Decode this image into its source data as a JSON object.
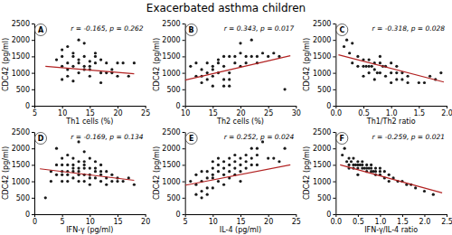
{
  "title": "Exacerbated asthma children",
  "chart_data": [
    {
      "type": "scatter",
      "title": "A",
      "annotations": [
        "r = -0.165, p = 0.262"
      ],
      "xlabel": "Th1 cells (%)",
      "ylabel": "CDC42 (pg/ml)",
      "xlim": [
        5,
        25
      ],
      "ylim": [
        0,
        2500
      ],
      "xticks": [
        5,
        10,
        15,
        20,
        25
      ],
      "yticks": [
        0,
        500,
        1000,
        1500,
        2000,
        2500
      ],
      "grid": false,
      "series": [
        {
          "type": "scatter",
          "color": "#1a1a1a",
          "x": [
            9,
            10,
            10,
            10,
            10,
            11,
            11,
            11,
            11,
            12,
            12,
            12,
            12,
            13,
            13,
            13,
            13,
            14,
            14,
            14,
            14,
            15,
            15,
            15,
            15,
            16,
            16,
            16,
            17,
            17,
            17,
            18,
            18,
            19,
            19,
            20,
            20,
            21,
            22,
            23
          ],
          "values": [
            1400,
            1700,
            1500,
            1200,
            800,
            1800,
            1300,
            1100,
            900,
            1600,
            1500,
            1200,
            750,
            2000,
            1400,
            1300,
            1000,
            1900,
            1500,
            1200,
            1100,
            1350,
            1200,
            1100,
            900,
            1600,
            1500,
            1300,
            1400,
            1000,
            700,
            1300,
            1000,
            1100,
            1000,
            1300,
            900,
            1300,
            900,
            1300
          ]
        },
        {
          "type": "line",
          "color": "#b22222",
          "x": [
            7,
            23
          ],
          "values": [
            1200,
            970
          ]
        }
      ]
    },
    {
      "type": "scatter",
      "title": "B",
      "annotations": [
        "r = 0.343, p = 0.017"
      ],
      "xlabel": "Th2 cells (%)",
      "ylabel": "CDC42 (pg/ml)",
      "xlim": [
        10,
        30
      ],
      "ylim": [
        0,
        2500
      ],
      "xticks": [
        10,
        15,
        20,
        25,
        30
      ],
      "yticks": [
        0,
        500,
        1000,
        1500,
        2000,
        2500
      ],
      "grid": false,
      "series": [
        {
          "type": "scatter",
          "color": "#1a1a1a",
          "x": [
            11,
            12,
            12,
            13,
            13,
            13,
            14,
            14,
            14,
            15,
            15,
            15,
            15,
            16,
            16,
            16,
            17,
            17,
            17,
            17,
            18,
            18,
            18,
            18,
            19,
            19,
            20,
            20,
            20,
            21,
            21,
            22,
            22,
            23,
            23,
            24,
            25,
            26,
            27,
            28
          ],
          "values": [
            1200,
            1300,
            900,
            1100,
            900,
            700,
            1300,
            1000,
            800,
            1200,
            1100,
            900,
            600,
            1400,
            1300,
            1000,
            1500,
            1200,
            800,
            600,
            1500,
            1000,
            800,
            600,
            1500,
            1300,
            1900,
            1600,
            1200,
            1500,
            1300,
            2000,
            1500,
            1500,
            1300,
            1600,
            1500,
            1600,
            1500,
            500
          ]
        },
        {
          "type": "line",
          "color": "#b22222",
          "x": [
            10,
            29
          ],
          "values": [
            780,
            1520
          ]
        }
      ]
    },
    {
      "type": "scatter",
      "title": "C",
      "annotations": [
        "r = -0.318, p = 0.028"
      ],
      "xlabel": "Th1/Th2 ratio",
      "ylabel": "CDC42 (pg/ml)",
      "xlim": [
        0.0,
        2.0
      ],
      "ylim": [
        0,
        2500
      ],
      "xticks": [
        {
          "value": 0.0,
          "label": "0.0"
        },
        0.5,
        {
          "value": 1.0,
          "label": "1.0"
        },
        1.5,
        {
          "value": 2.0,
          "label": "2.0"
        }
      ],
      "yticks": [
        0,
        500,
        1000,
        1500,
        2000,
        2500
      ],
      "grid": false,
      "series": [
        {
          "type": "scatter",
          "color": "#1a1a1a",
          "x": [
            0.15,
            0.2,
            0.25,
            0.3,
            0.3,
            0.4,
            0.4,
            0.5,
            0.5,
            0.5,
            0.55,
            0.6,
            0.6,
            0.6,
            0.65,
            0.7,
            0.7,
            0.7,
            0.75,
            0.8,
            0.8,
            0.8,
            0.85,
            0.9,
            0.9,
            1.0,
            1.0,
            1.0,
            1.1,
            1.1,
            1.1,
            1.2,
            1.2,
            1.3,
            1.3,
            1.5,
            1.6,
            1.7,
            1.8,
            1.9
          ],
          "values": [
            1800,
            2000,
            1600,
            1900,
            1300,
            1500,
            1200,
            1400,
            1200,
            900,
            1200,
            1400,
            1200,
            1000,
            1200,
            1300,
            1100,
            800,
            1000,
            1500,
            1300,
            1000,
            1200,
            1200,
            900,
            1300,
            1000,
            700,
            1200,
            1000,
            800,
            1000,
            800,
            900,
            700,
            700,
            700,
            900,
            800,
            1000
          ]
        },
        {
          "type": "line",
          "color": "#b22222",
          "x": [
            0.05,
            1.95
          ],
          "values": [
            1550,
            720
          ]
        }
      ]
    },
    {
      "type": "scatter",
      "title": "D",
      "annotations": [
        "r = -0.169, p = 0.134"
      ],
      "xlabel": "IFN-γ (pg/ml)",
      "ylabel": "CDC42 (pg/ml)",
      "xlim": [
        0,
        20
      ],
      "ylim": [
        0,
        2500
      ],
      "xticks": [
        0,
        5,
        10,
        15,
        20
      ],
      "yticks": [
        0,
        500,
        1000,
        1500,
        2000,
        2500
      ],
      "grid": false,
      "series": [
        {
          "type": "scatter",
          "color": "#1a1a1a",
          "x": [
            2,
            3,
            3,
            4,
            4,
            4,
            5,
            5,
            5,
            5,
            5,
            6,
            6,
            6,
            6,
            6,
            7,
            7,
            7,
            7,
            7,
            8,
            8,
            8,
            8,
            8,
            8,
            9,
            9,
            9,
            9,
            9,
            9,
            10,
            10,
            10,
            10,
            10,
            11,
            11,
            11,
            11,
            12,
            12,
            12,
            12,
            13,
            13,
            13,
            14,
            14,
            15,
            15,
            16,
            17,
            18
          ],
          "values": [
            500,
            1300,
            1000,
            2000,
            1500,
            1200,
            1700,
            1500,
            1300,
            1200,
            1000,
            1800,
            1500,
            1300,
            1200,
            1000,
            1700,
            1500,
            1400,
            1300,
            1100,
            2200,
            1600,
            1400,
            1300,
            1200,
            1000,
            1900,
            1600,
            1500,
            1400,
            1200,
            1000,
            1700,
            1400,
            1200,
            1100,
            900,
            1600,
            1400,
            1300,
            1100,
            1500,
            1300,
            1200,
            1000,
            1300,
            1100,
            900,
            1200,
            1000,
            1100,
            1000,
            1000,
            1100,
            900
          ]
        },
        {
          "type": "line",
          "color": "#b22222",
          "x": [
            1,
            18
          ],
          "values": [
            1380,
            1030
          ]
        }
      ]
    },
    {
      "type": "scatter",
      "title": "E",
      "annotations": [
        "r = 0.252, p = 0.024"
      ],
      "xlabel": "IL-4 (pg/ml)",
      "ylabel": "CDC42 (pg/ml)",
      "xlim": [
        5,
        25
      ],
      "ylim": [
        0,
        2500
      ],
      "xticks": [
        5,
        10,
        15,
        20,
        25
      ],
      "yticks": [
        0,
        500,
        1000,
        1500,
        2000,
        2500
      ],
      "grid": false,
      "series": [
        {
          "type": "scatter",
          "color": "#1a1a1a",
          "x": [
            6,
            7,
            7,
            7,
            8,
            8,
            8,
            8,
            9,
            9,
            9,
            9,
            10,
            10,
            10,
            10,
            10,
            11,
            11,
            11,
            11,
            12,
            12,
            12,
            12,
            13,
            13,
            13,
            13,
            14,
            14,
            14,
            14,
            15,
            15,
            15,
            15,
            16,
            16,
            16,
            17,
            17,
            17,
            18,
            18,
            18,
            19,
            20,
            21,
            22,
            23
          ],
          "values": [
            1000,
            1200,
            900,
            600,
            1300,
            1000,
            700,
            500,
            1300,
            1100,
            800,
            600,
            1600,
            1400,
            1200,
            1100,
            800,
            1700,
            1500,
            1300,
            1000,
            1600,
            1400,
            1200,
            900,
            1700,
            1500,
            1300,
            1100,
            1800,
            1600,
            1400,
            1200,
            1700,
            1500,
            1300,
            1000,
            1800,
            1600,
            1400,
            2000,
            1700,
            1500,
            2000,
            1800,
            1500,
            2200,
            1700,
            1700,
            1600,
            2000
          ]
        },
        {
          "type": "line",
          "color": "#b22222",
          "x": [
            5,
            24
          ],
          "values": [
            880,
            1500
          ]
        }
      ]
    },
    {
      "type": "scatter",
      "title": "F",
      "annotations": [
        "r = -0.259, p = 0.021"
      ],
      "xlabel": "IFN-γ/IL-4 ratio",
      "ylabel": "CDC42 (pg/ml)",
      "xlim": [
        0.0,
        2.5
      ],
      "ylim": [
        0,
        2500
      ],
      "xticks": [
        {
          "value": 0.0,
          "label": "0.0"
        },
        0.5,
        {
          "value": 1.0,
          "label": "1.0"
        },
        1.5,
        {
          "value": 2.0,
          "label": "2.0"
        },
        2.5
      ],
      "yticks": [
        0,
        500,
        1000,
        1500,
        2000,
        2500
      ],
      "grid": false,
      "series": [
        {
          "type": "scatter",
          "color": "#1a1a1a",
          "x": [
            0.15,
            0.2,
            0.25,
            0.3,
            0.3,
            0.3,
            0.35,
            0.4,
            0.4,
            0.4,
            0.45,
            0.5,
            0.5,
            0.5,
            0.5,
            0.55,
            0.6,
            0.6,
            0.6,
            0.65,
            0.7,
            0.7,
            0.7,
            0.75,
            0.8,
            0.8,
            0.8,
            0.85,
            0.9,
            0.9,
            0.9,
            1.0,
            1.0,
            1.0,
            1.1,
            1.1,
            1.2,
            1.2,
            1.3,
            1.4,
            1.5,
            1.6,
            1.7,
            1.8,
            2.0,
            2.2
          ],
          "values": [
            1800,
            2000,
            1600,
            1700,
            1500,
            1400,
            1600,
            1700,
            1500,
            1400,
            1500,
            1600,
            1500,
            1400,
            1200,
            1500,
            1600,
            1500,
            1400,
            1400,
            1500,
            1400,
            1300,
            1400,
            1500,
            1400,
            1300,
            1300,
            1400,
            1300,
            1200,
            1400,
            1300,
            1200,
            1300,
            1100,
            1200,
            1000,
            1100,
            1000,
            1000,
            900,
            900,
            800,
            700,
            600
          ]
        },
        {
          "type": "line",
          "color": "#b22222",
          "x": [
            0.1,
            2.4
          ],
          "values": [
            1500,
            650
          ]
        }
      ]
    }
  ]
}
